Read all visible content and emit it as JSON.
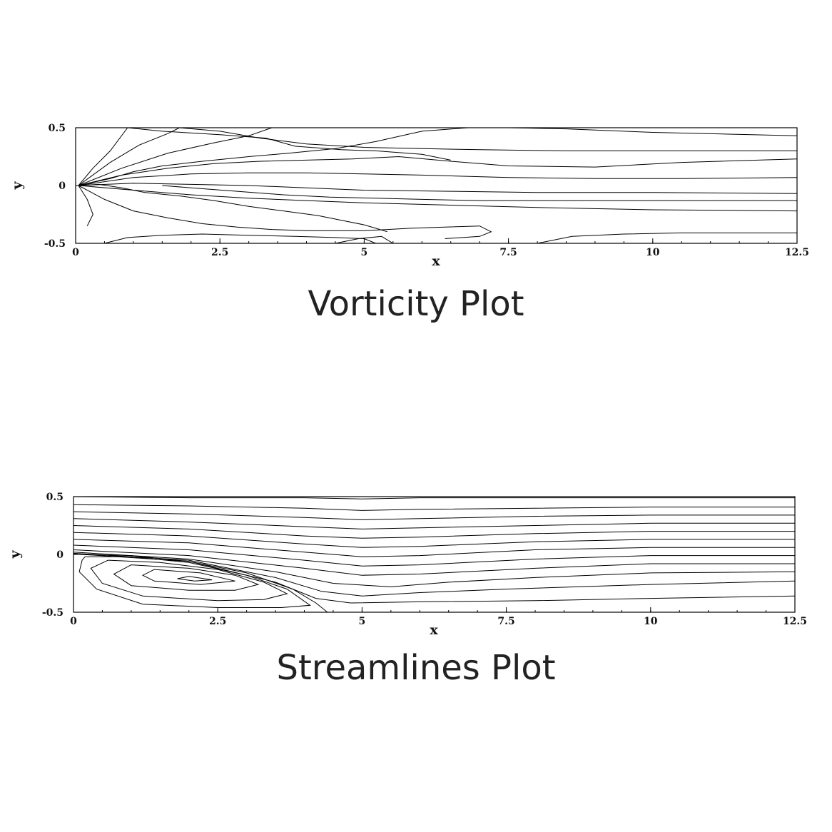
{
  "chart_data": [
    {
      "type": "contour",
      "title": "Vorticity Plot",
      "xlabel": "x",
      "ylabel": "y",
      "xlim": [
        0,
        12.5
      ],
      "ylim": [
        -0.5,
        0.5
      ],
      "xticks": [
        "0",
        "2.5",
        "5",
        "7.5",
        "10",
        "12.5"
      ],
      "yticks": [
        "0.5",
        "0",
        "-0.5"
      ],
      "contours": [
        {
          "x": [
            0.05,
            0.6,
            1.0,
            1.5,
            2.2,
            3.0,
            3.7,
            4.5,
            5.2,
            6.0,
            6.8,
            7.5,
            8.5,
            10.0,
            12.5
          ],
          "y": [
            0.0,
            0.06,
            0.12,
            0.17,
            0.21,
            0.25,
            0.28,
            0.32,
            0.38,
            0.47,
            0.5,
            0.5,
            0.49,
            0.46,
            0.43
          ]
        },
        {
          "x": [
            0.05,
            0.8,
            1.6,
            2.4,
            3.2,
            4.0,
            4.8,
            5.6,
            6.5,
            7.5,
            9.0,
            10.5,
            12.5
          ],
          "y": [
            0.0,
            0.09,
            0.15,
            0.19,
            0.21,
            0.22,
            0.23,
            0.25,
            0.21,
            0.17,
            0.16,
            0.2,
            0.23
          ]
        },
        {
          "x": [
            0.05,
            1.0,
            2.0,
            3.0,
            4.0,
            5.0,
            6.0,
            7.5,
            9.0,
            10.5,
            12.5
          ],
          "y": [
            0.0,
            0.07,
            0.1,
            0.11,
            0.11,
            0.1,
            0.09,
            0.07,
            0.06,
            0.06,
            0.07
          ]
        },
        {
          "x": [
            0.05,
            1.0,
            2.0,
            3.0,
            4.0,
            5.0,
            6.5,
            8.0,
            10.0,
            12.5
          ],
          "y": [
            0.0,
            0.02,
            0.01,
            0.0,
            -0.02,
            -0.04,
            -0.05,
            -0.06,
            -0.06,
            -0.07
          ]
        },
        {
          "x": [
            0.05,
            1.0,
            2.0,
            3.0,
            4.0,
            5.0,
            6.5,
            8.0,
            10.0,
            12.5
          ],
          "y": [
            0.0,
            -0.04,
            -0.08,
            -0.11,
            -0.13,
            -0.15,
            -0.17,
            -0.19,
            -0.21,
            -0.22
          ]
        },
        {
          "x": [
            0.05,
            0.5,
            1.0,
            1.6,
            2.2,
            2.8,
            3.4,
            4.0,
            4.6,
            5.0,
            5.4,
            5.8,
            6.4,
            7.0,
            7.2,
            7.0,
            6.4
          ],
          "y": [
            0.0,
            -0.12,
            -0.22,
            -0.28,
            -0.33,
            -0.36,
            -0.38,
            -0.39,
            -0.39,
            -0.39,
            -0.38,
            -0.37,
            -0.36,
            -0.35,
            -0.4,
            -0.44,
            -0.46
          ]
        },
        {
          "x": [
            0.5,
            0.9,
            1.5,
            2.2,
            3.0,
            3.8,
            4.5,
            5.0,
            5.2
          ],
          "y": [
            -0.5,
            -0.45,
            -0.43,
            -0.42,
            -0.43,
            -0.44,
            -0.45,
            -0.46,
            -0.5
          ]
        },
        {
          "x": [
            4.5,
            4.9,
            5.3,
            5.5
          ],
          "y": [
            -0.5,
            -0.46,
            -0.44,
            -0.5
          ]
        },
        {
          "x": [
            8.0,
            8.6,
            9.5,
            10.5,
            11.5,
            12.5
          ],
          "y": [
            -0.5,
            -0.44,
            -0.42,
            -0.41,
            -0.41,
            -0.41
          ]
        },
        {
          "x": [
            0.05,
            0.3,
            0.6,
            0.9
          ],
          "y": [
            0.0,
            0.15,
            0.3,
            0.5
          ]
        },
        {
          "x": [
            0.05,
            0.6,
            1.1,
            1.6,
            1.8
          ],
          "y": [
            0.0,
            0.2,
            0.35,
            0.45,
            0.5
          ]
        },
        {
          "x": [
            0.05,
            0.8,
            1.6,
            2.4,
            3.0,
            3.4
          ],
          "y": [
            0.0,
            0.15,
            0.28,
            0.37,
            0.43,
            0.5
          ]
        },
        {
          "x": [
            0.05,
            0.2,
            0.3,
            0.2
          ],
          "y": [
            0.0,
            -0.12,
            -0.25,
            -0.35
          ]
        },
        {
          "x": [
            0.05,
            0.4,
            0.8,
            1.2,
            1.8,
            2.4,
            3.0,
            3.6,
            4.2,
            4.6,
            5.0,
            5.2,
            5.4
          ],
          "y": [
            0.0,
            0.01,
            -0.02,
            -0.06,
            -0.09,
            -0.13,
            -0.18,
            -0.22,
            -0.26,
            -0.3,
            -0.34,
            -0.37,
            -0.4
          ]
        },
        {
          "x": [
            0.9,
            1.5,
            2.5,
            3.3,
            3.8,
            4.6,
            5.2,
            6.0,
            6.5
          ],
          "y": [
            0.5,
            0.47,
            0.44,
            0.41,
            0.34,
            0.31,
            0.3,
            0.27,
            0.22
          ]
        },
        {
          "x": [
            1.8,
            2.5,
            3.2,
            4.0,
            5.0,
            6.0,
            7.0,
            8.5,
            10.0,
            12.5
          ],
          "y": [
            0.5,
            0.47,
            0.41,
            0.36,
            0.33,
            0.32,
            0.31,
            0.3,
            0.3,
            0.3
          ]
        },
        {
          "x": [
            1.5,
            2.0,
            2.8,
            3.6,
            4.4,
            5.2,
            6.0,
            7.0,
            9.0,
            12.5
          ],
          "y": [
            0.0,
            -0.02,
            -0.05,
            -0.08,
            -0.1,
            -0.11,
            -0.12,
            -0.13,
            -0.13,
            -0.13
          ]
        }
      ]
    },
    {
      "type": "contour",
      "title": "Streamlines Plot",
      "xlabel": "x",
      "ylabel": "y",
      "xlim": [
        0,
        12.5
      ],
      "ylim": [
        -0.5,
        0.5
      ],
      "xticks": [
        "0",
        "2.5",
        "5",
        "7.5",
        "10",
        "12.5"
      ],
      "yticks": [
        "0.5",
        "0",
        "-0.5"
      ],
      "contours": [
        {
          "x": [
            0.0,
            2.0,
            4.0,
            5.0,
            6.0,
            8.0,
            10.0,
            12.5
          ],
          "y": [
            0.5,
            0.49,
            0.49,
            0.48,
            0.49,
            0.49,
            0.49,
            0.49
          ]
        },
        {
          "x": [
            0.0,
            2.0,
            4.0,
            5.0,
            6.0,
            8.0,
            10.0,
            12.5
          ],
          "y": [
            0.43,
            0.42,
            0.4,
            0.38,
            0.39,
            0.4,
            0.41,
            0.41
          ]
        },
        {
          "x": [
            0.0,
            2.0,
            4.0,
            5.0,
            6.0,
            8.0,
            10.0,
            12.5
          ],
          "y": [
            0.37,
            0.35,
            0.32,
            0.3,
            0.31,
            0.33,
            0.34,
            0.34
          ]
        },
        {
          "x": [
            0.0,
            2.0,
            4.0,
            5.0,
            6.0,
            8.0,
            10.0,
            12.5
          ],
          "y": [
            0.31,
            0.28,
            0.24,
            0.22,
            0.23,
            0.25,
            0.27,
            0.27
          ]
        },
        {
          "x": [
            0.0,
            2.0,
            4.0,
            5.0,
            6.0,
            8.0,
            10.0,
            12.5
          ],
          "y": [
            0.25,
            0.22,
            0.16,
            0.14,
            0.15,
            0.18,
            0.2,
            0.2
          ]
        },
        {
          "x": [
            0.0,
            2.0,
            4.0,
            5.0,
            6.0,
            8.0,
            10.0,
            12.5
          ],
          "y": [
            0.19,
            0.16,
            0.09,
            0.06,
            0.07,
            0.11,
            0.13,
            0.13
          ]
        },
        {
          "x": [
            0.0,
            2.0,
            4.0,
            5.0,
            6.0,
            8.0,
            10.0,
            12.5
          ],
          "y": [
            0.13,
            0.1,
            0.02,
            -0.02,
            -0.01,
            0.04,
            0.06,
            0.06
          ]
        },
        {
          "x": [
            0.0,
            2.0,
            4.0,
            5.0,
            6.0,
            8.0,
            10.0,
            12.5
          ],
          "y": [
            0.08,
            0.04,
            -0.05,
            -0.1,
            -0.09,
            -0.04,
            -0.01,
            -0.01
          ]
        },
        {
          "x": [
            0.0,
            2.0,
            4.0,
            5.0,
            6.0,
            8.0,
            10.0,
            12.5
          ],
          "y": [
            0.04,
            -0.01,
            -0.12,
            -0.18,
            -0.17,
            -0.12,
            -0.08,
            -0.08
          ]
        },
        {
          "x": [
            0.0,
            2.0,
            3.5,
            4.5,
            5.5,
            6.5,
            8.0,
            10.0,
            12.5
          ],
          "y": [
            0.02,
            -0.04,
            -0.15,
            -0.25,
            -0.28,
            -0.24,
            -0.2,
            -0.16,
            -0.15
          ]
        },
        {
          "x": [
            0.0,
            2.0,
            3.5,
            4.3,
            5.0,
            6.0,
            7.5,
            10.0,
            12.5
          ],
          "y": [
            0.01,
            -0.05,
            -0.2,
            -0.32,
            -0.36,
            -0.33,
            -0.3,
            -0.26,
            -0.23
          ]
        },
        {
          "x": [
            0.0,
            2.0,
            3.5,
            4.2,
            4.8,
            6.0,
            8.0,
            10.0,
            12.5
          ],
          "y": [
            0.005,
            -0.06,
            -0.24,
            -0.38,
            -0.42,
            -0.41,
            -0.4,
            -0.38,
            -0.36
          ]
        },
        {
          "x": [
            0.1,
            1.0,
            2.0,
            3.0,
            3.8,
            4.2,
            4.4
          ],
          "y": [
            0.0,
            -0.01,
            -0.06,
            -0.16,
            -0.3,
            -0.42,
            -0.5
          ]
        },
        {
          "x": [
            0.2,
            1.0,
            2.0,
            3.0,
            3.7,
            4.1,
            3.6,
            2.5,
            1.2,
            0.4,
            0.1,
            0.15,
            0.2
          ],
          "y": [
            -0.02,
            -0.02,
            -0.07,
            -0.18,
            -0.3,
            -0.44,
            -0.46,
            -0.46,
            -0.43,
            -0.3,
            -0.15,
            -0.05,
            -0.02
          ]
        },
        {
          "x": [
            0.6,
            1.5,
            2.5,
            3.3,
            3.7,
            3.3,
            2.5,
            1.2,
            0.5,
            0.3,
            0.6
          ],
          "y": [
            -0.05,
            -0.07,
            -0.13,
            -0.24,
            -0.34,
            -0.39,
            -0.4,
            -0.36,
            -0.25,
            -0.12,
            -0.05
          ]
        },
        {
          "x": [
            1.0,
            2.0,
            2.8,
            3.2,
            2.8,
            2.0,
            1.0,
            0.7,
            1.0
          ],
          "y": [
            -0.09,
            -0.12,
            -0.18,
            -0.26,
            -0.31,
            -0.31,
            -0.27,
            -0.17,
            -0.09
          ]
        },
        {
          "x": [
            1.4,
            2.2,
            2.8,
            2.2,
            1.4,
            1.2,
            1.4
          ],
          "y": [
            -0.13,
            -0.16,
            -0.23,
            -0.26,
            -0.23,
            -0.18,
            -0.13
          ]
        },
        {
          "x": [
            2.0,
            2.4,
            2.1,
            1.8,
            2.0
          ],
          "y": [
            -0.19,
            -0.22,
            -0.23,
            -0.21,
            -0.19
          ]
        }
      ]
    }
  ]
}
